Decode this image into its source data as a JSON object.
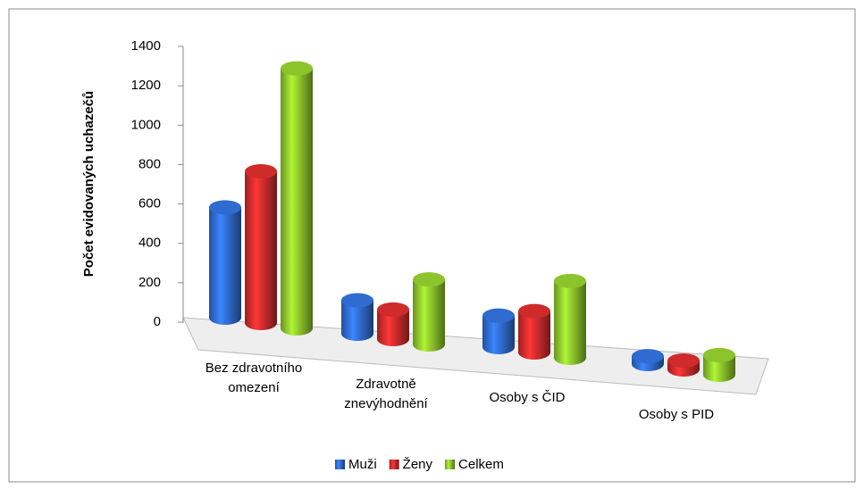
{
  "chart_data": {
    "type": "bar3d",
    "y_label": "Počet evidovaných uchazečů",
    "categories": [
      "Bez zdravotního omezení",
      "Zdravotně znevýhodnění",
      "Osoby s ČID",
      "Osoby s PID"
    ],
    "series": [
      {
        "name": "Muži",
        "color": "#2f6bd0",
        "values": [
          560,
          170,
          160,
          40
        ]
      },
      {
        "name": "Ženy",
        "color": "#cf2b2b",
        "values": [
          770,
          150,
          210,
          45
        ]
      },
      {
        "name": "Celkem",
        "color": "#8cc42b",
        "values": [
          1320,
          330,
          390,
          100
        ]
      }
    ],
    "ylim": [
      0,
      1400
    ],
    "yticks": [
      0,
      200,
      400,
      600,
      800,
      1000,
      1200,
      1400
    ],
    "grid": false,
    "legend": "bottom"
  }
}
